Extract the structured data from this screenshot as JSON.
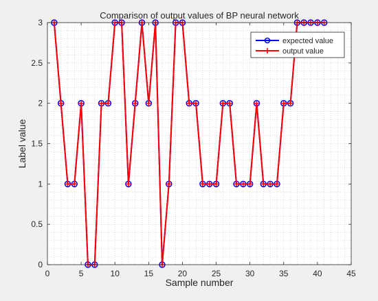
{
  "chart_data": {
    "type": "line",
    "title": "Comparison of output values of BP neural network",
    "xlabel": "Sample number",
    "ylabel": "Label value",
    "xlim": [
      0,
      45
    ],
    "ylim": [
      0,
      3
    ],
    "xticks": [
      0,
      5,
      10,
      15,
      20,
      25,
      30,
      35,
      40,
      45
    ],
    "xtick_labels": [
      "0",
      "5",
      "10",
      "15",
      "20",
      "25",
      "30",
      "35",
      "40",
      "45"
    ],
    "yticks": [
      0,
      0.5,
      1,
      1.5,
      2,
      2.5,
      3
    ],
    "ytick_labels": [
      "0",
      "0.5",
      "1",
      "1.5",
      "2",
      "2.5",
      "3"
    ],
    "grid": "minor dotted",
    "legend_position": "top-right",
    "x": [
      1,
      2,
      3,
      4,
      5,
      6,
      7,
      8,
      9,
      10,
      11,
      12,
      13,
      14,
      15,
      16,
      17,
      18,
      19,
      20,
      21,
      22,
      23,
      24,
      25,
      26,
      27,
      28,
      29,
      30,
      31,
      32,
      33,
      34,
      35,
      36,
      37,
      38,
      39,
      40,
      41
    ],
    "series": [
      {
        "name": "expected value",
        "color": "#0000ff",
        "marker": "circle",
        "values": [
          3,
          2,
          1,
          1,
          2,
          0,
          0,
          2,
          2,
          3,
          3,
          1,
          2,
          3,
          2,
          3,
          0,
          1,
          3,
          3,
          2,
          2,
          1,
          1,
          1,
          2,
          2,
          1,
          1,
          1,
          2,
          1,
          1,
          1,
          2,
          2,
          3,
          3,
          3,
          3,
          3
        ]
      },
      {
        "name": "output value",
        "color": "#ff0000",
        "marker": "plus",
        "values": [
          3,
          2,
          1,
          1,
          2,
          0,
          0,
          2,
          2,
          3,
          3,
          1,
          2,
          3,
          2,
          3,
          0,
          1,
          3,
          3,
          2,
          2,
          1,
          1,
          1,
          2,
          2,
          1,
          1,
          1,
          2,
          1,
          1,
          1,
          2,
          2,
          3,
          3,
          3,
          3,
          3
        ]
      }
    ]
  }
}
